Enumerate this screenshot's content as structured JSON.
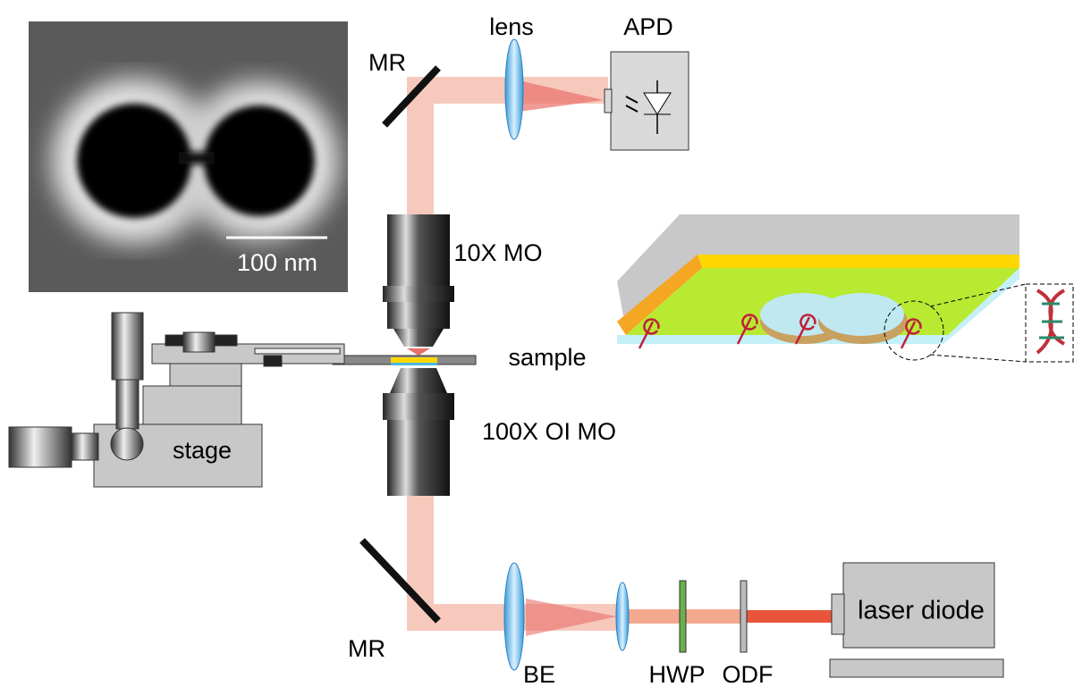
{
  "nodes": [
    {
      "label": "lens"
    },
    {
      "label": "APD"
    },
    {
      "label": "MR"
    },
    {
      "label": "10X MO"
    },
    {
      "label": "100 nm"
    },
    {
      "label": "sample"
    },
    {
      "label": "100X OI MO"
    },
    {
      "label": "stage"
    },
    {
      "label": "MR"
    },
    {
      "label": "BE"
    },
    {
      "label": "HWP"
    },
    {
      "label": "ODF"
    },
    {
      "label": "laser diode"
    }
  ]
}
